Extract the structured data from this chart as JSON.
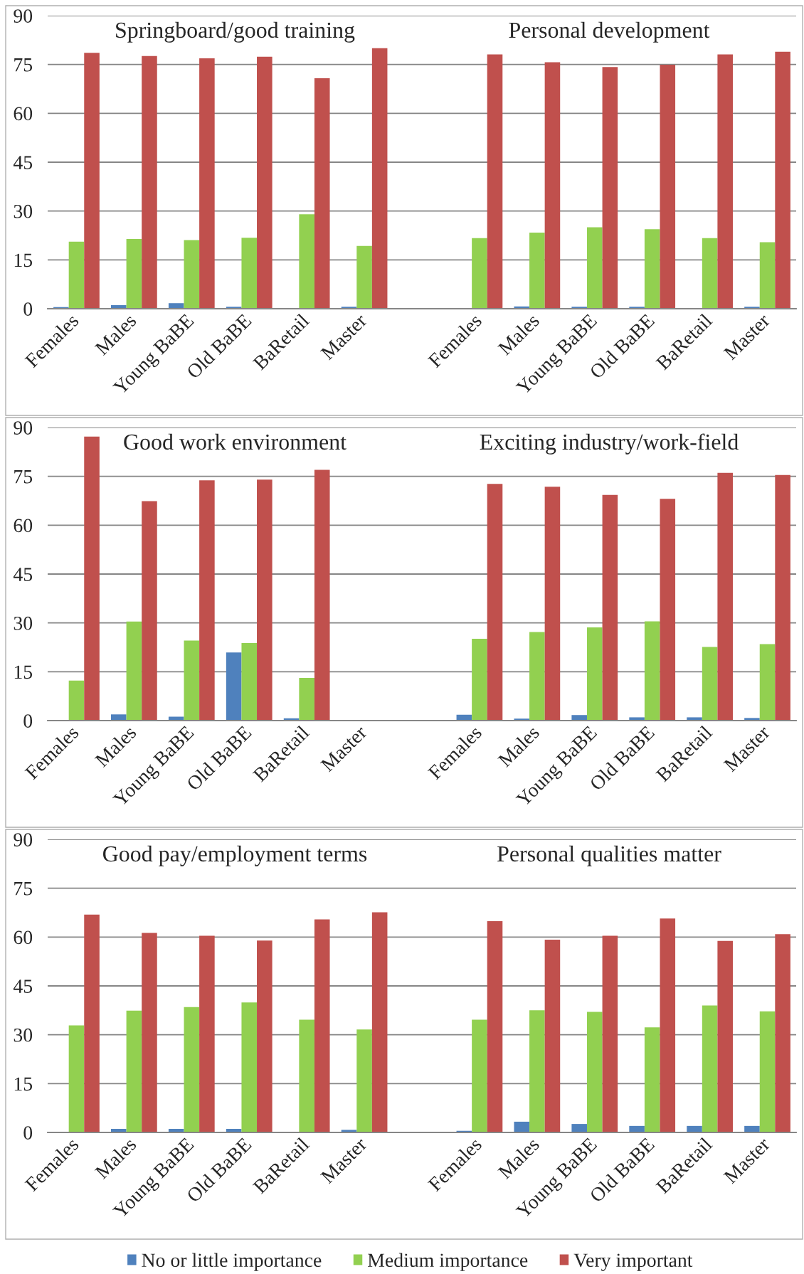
{
  "chart_data": [
    {
      "type": "bar",
      "title": "Springboard/good training",
      "categories": [
        "Females",
        "Males",
        "Young BaBE",
        "Old BaBE",
        "BaRetail",
        "Master"
      ],
      "series": [
        {
          "color": "#4f81bd",
          "values": [
            0.5,
            1.1,
            1.7,
            0.6,
            null,
            0.6
          ]
        },
        {
          "color": "#92d050",
          "values": [
            20.6,
            21.4,
            21.1,
            21.8,
            29.0,
            19.3
          ]
        },
        {
          "color": "#c0504d",
          "values": [
            78.6,
            77.6,
            76.9,
            77.4,
            70.8,
            80.0
          ]
        }
      ],
      "ylim": [
        0,
        90
      ],
      "yticks": [
        0,
        15,
        30,
        45,
        60,
        75,
        90
      ],
      "grid": "y"
    },
    {
      "type": "bar",
      "title": "Personal development",
      "categories": [
        "Females",
        "Males",
        "Young BaBE",
        "Old BaBE",
        "BaRetail",
        "Master"
      ],
      "series": [
        {
          "color": "#4f81bd",
          "values": [
            null,
            0.7,
            0.6,
            0.6,
            null,
            0.6
          ]
        },
        {
          "color": "#92d050",
          "values": [
            21.7,
            23.4,
            25.0,
            24.4,
            21.7,
            20.4
          ]
        },
        {
          "color": "#c0504d",
          "values": [
            78.1,
            75.7,
            74.2,
            74.9,
            78.1,
            78.9
          ]
        }
      ],
      "ylim": [
        0,
        90
      ],
      "yticks": [
        0,
        15,
        30,
        45,
        60,
        75,
        90
      ],
      "grid": "y",
      "tick_labels": "x"
    },
    {
      "type": "bar",
      "title": "Good work environment",
      "categories": [
        "Females",
        "Males",
        "Young BaBE",
        "Old BaBE",
        "BaRetail",
        "Master"
      ],
      "series": [
        {
          "color": "#4f81bd",
          "values": [
            null,
            1.9,
            1.2,
            20.9,
            0.7,
            null
          ]
        },
        {
          "color": "#92d050",
          "values": [
            12.3,
            30.4,
            24.6,
            23.8,
            13.1,
            null
          ]
        },
        {
          "color": "#c0504d",
          "values": [
            87.2,
            67.4,
            73.8,
            74.0,
            77.0,
            null
          ]
        }
      ],
      "ylim": [
        0,
        90
      ],
      "yticks": [
        0,
        15,
        30,
        45,
        60,
        75,
        90
      ],
      "grid": "y"
    },
    {
      "type": "bar",
      "title": "Exciting industry/work-field",
      "categories": [
        "Females",
        "Males",
        "Young BaBE",
        "Old BaBE",
        "BaRetail",
        "Master"
      ],
      "series": [
        {
          "color": "#4f81bd",
          "values": [
            1.8,
            0.6,
            1.7,
            1.0,
            1.0,
            0.8
          ]
        },
        {
          "color": "#92d050",
          "values": [
            25.1,
            27.2,
            28.6,
            30.5,
            22.6,
            23.5
          ]
        },
        {
          "color": "#c0504d",
          "values": [
            72.7,
            71.8,
            69.3,
            68.1,
            76.1,
            75.4
          ]
        }
      ],
      "ylim": [
        0,
        90
      ],
      "yticks": [
        0,
        15,
        30,
        45,
        60,
        75,
        90
      ],
      "grid": "y",
      "tick_labels": "x"
    },
    {
      "type": "bar",
      "title": "Good pay/employment terms",
      "categories": [
        "Females",
        "Males",
        "Young BaBE",
        "Old BaBE",
        "BaRetail",
        "Master"
      ],
      "series": [
        {
          "color": "#4f81bd",
          "values": [
            0.2,
            1.1,
            1.1,
            1.1,
            null,
            0.8
          ]
        },
        {
          "color": "#92d050",
          "values": [
            32.9,
            37.4,
            38.5,
            39.9,
            34.6,
            31.6
          ]
        },
        {
          "color": "#c0504d",
          "values": [
            66.9,
            61.3,
            60.4,
            58.9,
            65.4,
            67.6
          ]
        }
      ],
      "ylim": [
        0,
        90
      ],
      "yticks": [
        0,
        15,
        30,
        45,
        60,
        75,
        90
      ],
      "grid": "y"
    },
    {
      "type": "bar",
      "title": "Personal qualities matter",
      "categories": [
        "Females",
        "Males",
        "Young BaBE",
        "Old BaBE",
        "BaRetail",
        "Master"
      ],
      "series": [
        {
          "name": "No or little importance",
          "color": "#4f81bd",
          "values": [
            0.5,
            3.3,
            2.6,
            2.0,
            2.0,
            2.0
          ]
        },
        {
          "name": "Medium importance",
          "color": "#92d050",
          "values": [
            34.6,
            37.5,
            37.0,
            32.3,
            39.0,
            37.2
          ]
        },
        {
          "name": "Very important",
          "color": "#c0504d",
          "values": [
            64.9,
            59.2,
            60.4,
            65.7,
            58.8,
            60.9
          ]
        }
      ],
      "ylim": [
        0,
        90
      ],
      "yticks": [
        0,
        15,
        30,
        45,
        60,
        75,
        90
      ],
      "grid": "y",
      "tick_labels": "x",
      "legend": "bottom"
    }
  ]
}
